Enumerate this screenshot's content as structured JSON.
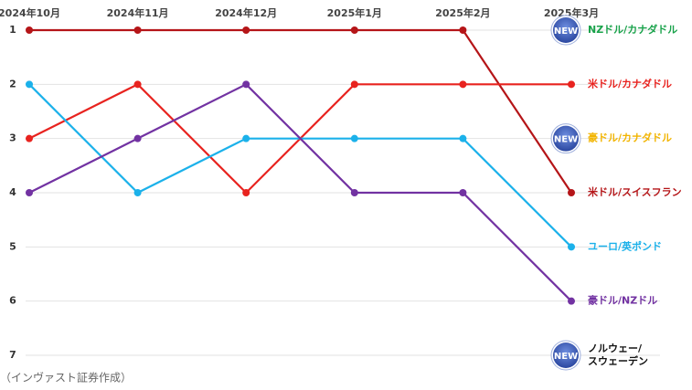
{
  "chart_data": {
    "type": "line",
    "categories": [
      "2024年10月",
      "2024年11月",
      "2024年12月",
      "2025年1月",
      "2025年2月",
      "2025年3月"
    ],
    "ylim": [
      7,
      1
    ],
    "yticks": [
      1,
      2,
      3,
      4,
      5,
      6,
      7
    ],
    "grid": true,
    "series": [
      {
        "name": "米ドル/スイスフラン",
        "color": "#b51518",
        "values": [
          1,
          1,
          1,
          1,
          1,
          4
        ]
      },
      {
        "name": "米ドル/カナダドル",
        "color": "#e8231f",
        "values": [
          3,
          2,
          4,
          2,
          2,
          2
        ]
      },
      {
        "name": "ユーロ/英ポンド",
        "color": "#1bb1ea",
        "values": [
          2,
          4,
          3,
          3,
          3,
          5
        ]
      },
      {
        "name": "豪ドル/NZドル",
        "color": "#7232a2",
        "values": [
          4,
          3,
          2,
          4,
          4,
          6
        ]
      }
    ],
    "badge_label": "NEW",
    "new_entries": [
      {
        "name_lines": [
          "NZドル/カナダドル"
        ],
        "color": "#18a24a",
        "rank": 1
      },
      {
        "name_lines": [
          "豪ドル/カナダドル"
        ],
        "color": "#f2b400",
        "rank": 3
      },
      {
        "name_lines": [
          "ノルウェー/",
          "スウェーデン"
        ],
        "color": "#111111",
        "rank": 7
      }
    ],
    "source": "（インヴァスト証券作成）"
  }
}
